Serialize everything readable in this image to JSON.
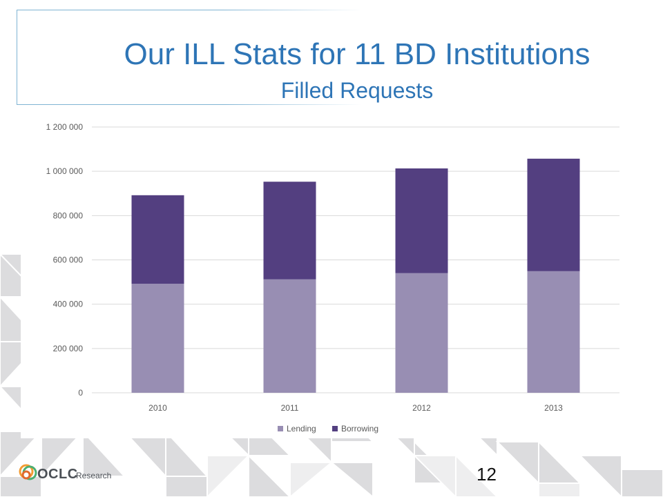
{
  "slide": {
    "title": "Our ILL Stats for 11 BD Institutions",
    "subtitle": "Filled Requests",
    "number": "12",
    "logo_text": "OCLC",
    "logo_sub": "Research"
  },
  "colors": {
    "title": "#2e75b6",
    "lending": "#988eb3",
    "borrowing": "#533f80",
    "grid": "#d9d9d9",
    "axis_text": "#595959"
  },
  "chart_data": {
    "type": "bar",
    "stacked": true,
    "categories": [
      "2010",
      "2011",
      "2012",
      "2013"
    ],
    "series": [
      {
        "name": "Lending",
        "values": [
          492000,
          512000,
          540000,
          549000
        ]
      },
      {
        "name": "Borrowing",
        "values": [
          400000,
          441000,
          473000,
          508000
        ]
      }
    ],
    "y_ticks": [
      0,
      200000,
      400000,
      600000,
      800000,
      1000000,
      1200000
    ],
    "y_tick_labels": [
      "0",
      "200 000",
      "400 000",
      "600 000",
      "800 000",
      "1 000 000",
      "1 200 000"
    ],
    "ylim": [
      0,
      1200000
    ],
    "grid": true,
    "legend": "bottom"
  }
}
